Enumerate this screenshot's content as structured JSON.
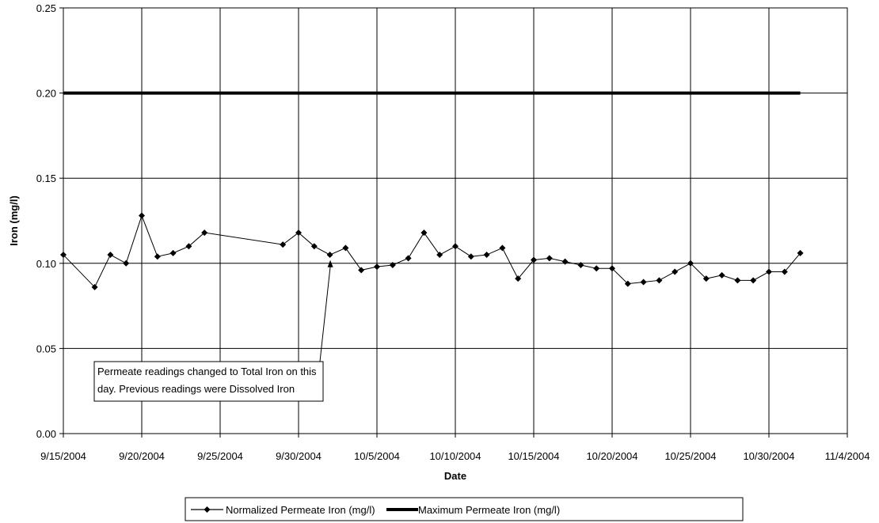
{
  "chart_data": {
    "type": "line",
    "title": "",
    "xlabel": "Date",
    "ylabel": "Iron (mg/l)",
    "xlim": [
      "2004-09-15",
      "2004-11-04"
    ],
    "ylim": [
      0,
      0.25
    ],
    "x_ticks": [
      "9/15/2004",
      "9/20/2004",
      "9/25/2004",
      "9/30/2004",
      "10/5/2004",
      "10/10/2004",
      "10/15/2004",
      "10/20/2004",
      "10/25/2004",
      "10/30/2004",
      "11/4/2004"
    ],
    "y_ticks": [
      "0.00",
      "0.05",
      "0.10",
      "0.15",
      "0.20",
      "0.25"
    ],
    "grid": true,
    "legend_position": "bottom",
    "series": [
      {
        "name": "Normalized Permeate Iron (mg/l)",
        "color": "#000000",
        "marker": "diamond",
        "points": [
          [
            "2004-09-15",
            0.105
          ],
          [
            "2004-09-17",
            0.086
          ],
          [
            "2004-09-18",
            0.105
          ],
          [
            "2004-09-19",
            0.1
          ],
          [
            "2004-09-20",
            0.128
          ],
          [
            "2004-09-21",
            0.104
          ],
          [
            "2004-09-22",
            0.106
          ],
          [
            "2004-09-23",
            0.11
          ],
          [
            "2004-09-24",
            0.118
          ],
          [
            "2004-09-29",
            0.111
          ],
          [
            "2004-09-30",
            0.118
          ],
          [
            "2004-10-01",
            0.11
          ],
          [
            "2004-10-02",
            0.105
          ],
          [
            "2004-10-03",
            0.109
          ],
          [
            "2004-10-04",
            0.096
          ],
          [
            "2004-10-05",
            0.098
          ],
          [
            "2004-10-06",
            0.099
          ],
          [
            "2004-10-07",
            0.103
          ],
          [
            "2004-10-08",
            0.118
          ],
          [
            "2004-10-09",
            0.105
          ],
          [
            "2004-10-10",
            0.11
          ],
          [
            "2004-10-11",
            0.104
          ],
          [
            "2004-10-12",
            0.105
          ],
          [
            "2004-10-13",
            0.109
          ],
          [
            "2004-10-14",
            0.091
          ],
          [
            "2004-10-15",
            0.102
          ],
          [
            "2004-10-16",
            0.103
          ],
          [
            "2004-10-17",
            0.101
          ],
          [
            "2004-10-18",
            0.099
          ],
          [
            "2004-10-19",
            0.097
          ],
          [
            "2004-10-20",
            0.097
          ],
          [
            "2004-10-21",
            0.088
          ],
          [
            "2004-10-22",
            0.089
          ],
          [
            "2004-10-23",
            0.09
          ],
          [
            "2004-10-24",
            0.095
          ],
          [
            "2004-10-25",
            0.1
          ],
          [
            "2004-10-26",
            0.091
          ],
          [
            "2004-10-27",
            0.093
          ],
          [
            "2004-10-28",
            0.09
          ],
          [
            "2004-10-29",
            0.09
          ],
          [
            "2004-10-30",
            0.095
          ],
          [
            "2004-10-31",
            0.095
          ],
          [
            "2004-11-01",
            0.106
          ]
        ]
      },
      {
        "name": "Maximum Permeate Iron (mg/l)",
        "color": "#000000",
        "marker": "none",
        "points": [
          [
            "2004-09-15",
            0.2
          ],
          [
            "2004-11-01",
            0.2
          ]
        ]
      }
    ],
    "annotation": {
      "text_line1": "Permeate readings changed to Total Iron on this",
      "text_line2": "day. Previous readings were Dissolved Iron",
      "points_to": [
        "2004-10-02",
        0.1
      ]
    }
  }
}
